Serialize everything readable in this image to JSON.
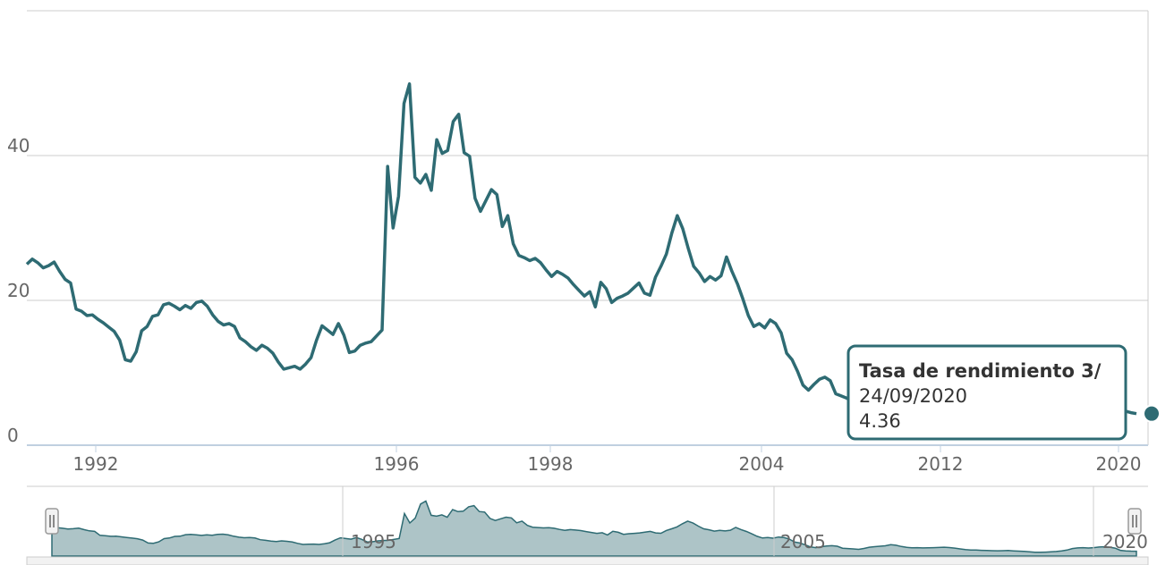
{
  "colors": {
    "series": "#2e6b73",
    "navigator_fill": "#adc4c7",
    "grid": "#cccccc",
    "axis": "#c0d0e0",
    "text": "#666666"
  },
  "tooltip": {
    "series_name": "Tasa de rendimiento 3/",
    "date": "24/09/2020",
    "value": "4.36"
  },
  "navigator": {
    "labels": [
      "1995",
      "2005",
      "2020"
    ]
  },
  "chart_data": {
    "type": "line",
    "title": "",
    "xlabel": "",
    "ylabel": "",
    "ylim": [
      0,
      60
    ],
    "yticks": [
      0,
      20,
      40
    ],
    "grid": true,
    "legend": "none",
    "x_tick_labels": [
      "1992",
      "1996",
      "1998",
      "2004",
      "2012",
      "2020"
    ],
    "series": [
      {
        "name": "Tasa de rendimiento 3/",
        "x_index_range": "approximate daily sampling",
        "values": [
          25.0,
          25.7,
          25.2,
          24.5,
          24.8,
          25.3,
          24.0,
          22.9,
          22.4,
          18.8,
          18.5,
          17.9,
          18.0,
          17.4,
          16.9,
          16.3,
          15.7,
          14.5,
          11.8,
          11.6,
          12.9,
          15.8,
          16.4,
          17.8,
          18.0,
          19.4,
          19.6,
          19.2,
          18.7,
          19.3,
          18.9,
          19.7,
          19.9,
          19.2,
          18.0,
          17.1,
          16.6,
          16.8,
          16.4,
          14.8,
          14.3,
          13.6,
          13.1,
          13.8,
          13.4,
          12.7,
          11.5,
          10.5,
          10.7,
          10.9,
          10.5,
          11.2,
          12.1,
          14.5,
          16.5,
          15.9,
          15.3,
          16.8,
          15.2,
          12.8,
          13.0,
          13.8,
          14.1,
          14.3,
          15.1,
          15.9,
          38.5,
          30.0,
          34.4,
          47.2,
          49.9,
          37.0,
          36.2,
          37.4,
          35.2,
          42.2,
          40.3,
          40.7,
          44.7,
          45.7,
          40.4,
          39.9,
          34.1,
          32.3,
          33.8,
          35.3,
          34.6,
          30.2,
          31.7,
          27.8,
          26.2,
          25.9,
          25.5,
          25.8,
          25.2,
          24.2,
          23.3,
          24.0,
          23.6,
          23.1,
          22.2,
          21.4,
          20.6,
          21.2,
          19.1,
          22.5,
          21.6,
          19.7,
          20.3,
          20.6,
          21.0,
          21.7,
          22.4,
          21.0,
          20.7,
          23.2,
          24.7,
          26.4,
          29.3,
          31.7,
          29.9,
          27.2,
          24.7,
          23.8,
          22.6,
          23.3,
          22.8,
          23.4,
          26.0,
          24.0,
          22.3,
          20.2,
          17.9,
          16.4,
          16.8,
          16.2,
          17.3,
          16.8,
          15.5,
          12.7,
          11.8,
          10.2,
          8.3,
          7.6,
          8.4,
          9.1,
          9.4,
          8.9,
          7.1,
          6.8,
          6.5,
          6.1,
          6.9,
          8.0,
          8.5,
          8.9,
          9.3,
          10.3,
          9.8,
          8.7,
          7.9,
          7.5,
          7.6,
          7.4,
          7.5,
          7.6,
          7.8,
          8.0,
          7.7,
          7.2,
          6.5,
          5.8,
          5.5,
          5.4,
          5.2,
          5.0,
          4.9,
          4.8,
          4.9,
          5.0,
          4.7,
          4.5,
          4.2,
          3.8,
          3.5,
          3.4,
          3.6,
          3.8,
          4.1,
          4.6,
          5.4,
          6.8,
          7.4,
          7.6,
          7.3,
          7.6,
          8.2,
          8.4,
          8.0,
          7.2,
          5.2,
          4.7,
          4.5,
          4.36
        ]
      }
    ]
  }
}
